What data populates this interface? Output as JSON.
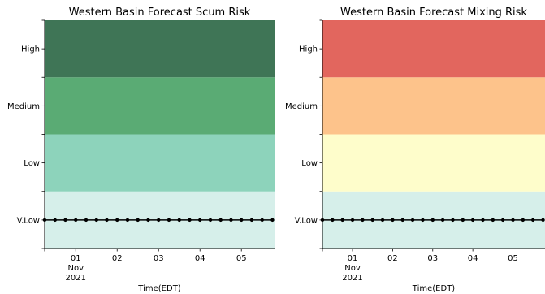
{
  "chart_data": [
    {
      "type": "line",
      "title": "Western Basin Forecast Scum Risk",
      "xlabel": "Time(EDT)",
      "ylabel": "",
      "x_ticks": [
        {
          "day": "01",
          "month": "Nov",
          "year": "2021",
          "pos": 1
        },
        {
          "day": "02",
          "month": "",
          "year": "",
          "pos": 2
        },
        {
          "day": "03",
          "month": "",
          "year": "",
          "pos": 3
        },
        {
          "day": "04",
          "month": "",
          "year": "",
          "pos": 4
        },
        {
          "day": "05",
          "month": "",
          "year": "",
          "pos": 5
        }
      ],
      "xlim": [
        0.25,
        5.8
      ],
      "categories": [
        "V.Low",
        "Low",
        "Medium",
        "High"
      ],
      "bands": [
        {
          "level": "V.Low",
          "color": "#d6efea"
        },
        {
          "level": "Low",
          "color": "#8dd3bb"
        },
        {
          "level": "Medium",
          "color": "#5aab74"
        },
        {
          "level": "High",
          "color": "#3f7556"
        }
      ],
      "series": [
        {
          "x": [
            0.25,
            0.5,
            0.75,
            1.0,
            1.25,
            1.5,
            1.75,
            2.0,
            2.25,
            2.5,
            2.75,
            3.0,
            3.25,
            3.5,
            3.75,
            4.0,
            4.25,
            4.5,
            4.75,
            5.0,
            5.25,
            5.5,
            5.75
          ],
          "y": [
            0,
            0,
            0,
            0,
            0,
            0,
            0,
            0,
            0,
            0,
            0,
            0,
            0,
            0,
            0,
            0,
            0,
            0,
            0,
            0,
            0,
            0,
            0
          ],
          "color": "#000000"
        }
      ]
    },
    {
      "type": "line",
      "title": "Western Basin Forecast Mixing Risk",
      "xlabel": "Time(EDT)",
      "ylabel": "",
      "x_ticks": [
        {
          "day": "01",
          "month": "Nov",
          "year": "2021",
          "pos": 1
        },
        {
          "day": "02",
          "month": "",
          "year": "",
          "pos": 2
        },
        {
          "day": "03",
          "month": "",
          "year": "",
          "pos": 3
        },
        {
          "day": "04",
          "month": "",
          "year": "",
          "pos": 4
        },
        {
          "day": "05",
          "month": "",
          "year": "",
          "pos": 5
        }
      ],
      "xlim": [
        0.25,
        5.8
      ],
      "categories": [
        "V.Low",
        "Low",
        "Medium",
        "High"
      ],
      "bands": [
        {
          "level": "V.Low",
          "color": "#d6efea"
        },
        {
          "level": "Low",
          "color": "#fefdcb"
        },
        {
          "level": "Medium",
          "color": "#fdc38b"
        },
        {
          "level": "High",
          "color": "#e2665e"
        }
      ],
      "series": [
        {
          "x": [
            0.25,
            0.5,
            0.75,
            1.0,
            1.25,
            1.5,
            1.75,
            2.0,
            2.25,
            2.5,
            2.75,
            3.0,
            3.25,
            3.5,
            3.75,
            4.0,
            4.25,
            4.5,
            4.75,
            5.0,
            5.25,
            5.5,
            5.75
          ],
          "y": [
            0,
            0,
            0,
            0,
            0,
            0,
            0,
            0,
            0,
            0,
            0,
            0,
            0,
            0,
            0,
            0,
            0,
            0,
            0,
            0,
            0,
            0,
            0
          ],
          "color": "#000000"
        }
      ]
    }
  ]
}
